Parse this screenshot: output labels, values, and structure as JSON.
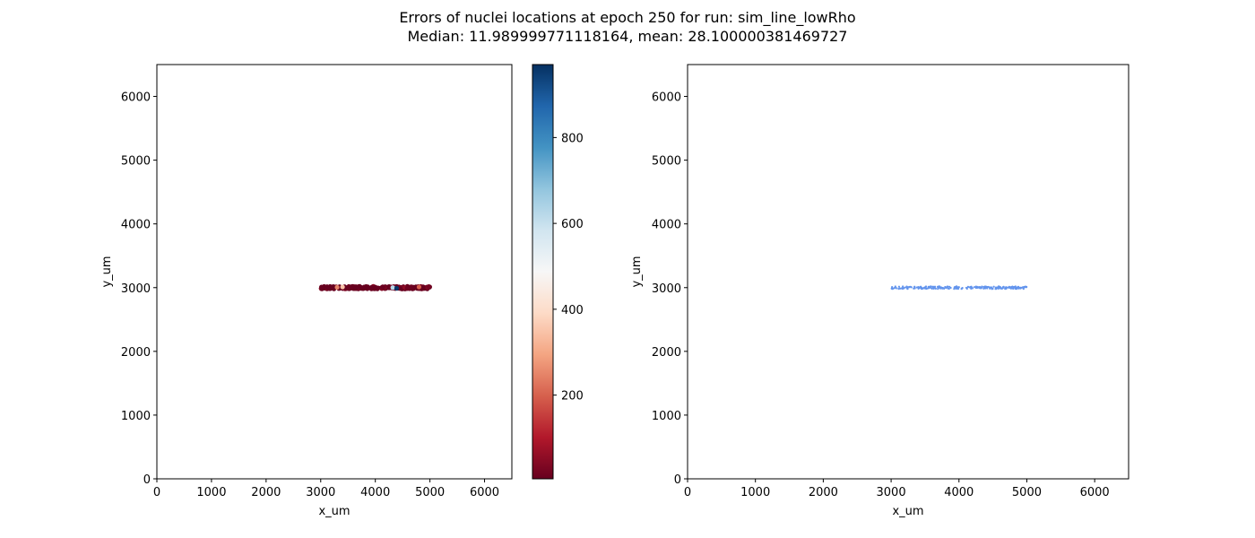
{
  "figure": {
    "title_line1": "Errors of nuclei locations at epoch 250 for run: sim_line_lowRho",
    "title_line2": "Median: 11.989999771118164, mean: 28.100000381469727"
  },
  "chart_data": [
    {
      "type": "scatter",
      "title": "",
      "xlabel": "x_um",
      "ylabel": "y_um",
      "xlim": [
        0,
        6500
      ],
      "ylim": [
        0,
        6500
      ],
      "xticks": [
        0,
        1000,
        2000,
        3000,
        4000,
        5000,
        6000
      ],
      "yticks": [
        0,
        1000,
        2000,
        3000,
        4000,
        5000,
        6000
      ],
      "grid": false,
      "colorbar": {
        "colormap": "RdBu",
        "range": [
          5,
          970
        ],
        "ticks": [
          200,
          400,
          600,
          800
        ]
      },
      "points": {
        "x_range": [
          3000,
          5000
        ],
        "y_center": 3000,
        "y_spread": 20,
        "color_value_mostly": "low (< 50)",
        "notable": [
          {
            "x": 3400,
            "y": 3010,
            "error": 350
          },
          {
            "x": 3300,
            "y": 3005,
            "error": 250
          },
          {
            "x": 4320,
            "y": 3000,
            "error": 620
          },
          {
            "x": 4390,
            "y": 2990,
            "error": 960
          },
          {
            "x": 4800,
            "y": 3010,
            "error": 200
          }
        ]
      }
    },
    {
      "type": "scatter",
      "title": "",
      "xlabel": "x_um",
      "ylabel": "y_um",
      "xlim": [
        0,
        6500
      ],
      "ylim": [
        0,
        6500
      ],
      "xticks": [
        0,
        1000,
        2000,
        3000,
        4000,
        5000,
        6000
      ],
      "yticks": [
        0,
        1000,
        2000,
        3000,
        4000,
        5000,
        6000
      ],
      "grid": false,
      "marker_color": "#6495ED",
      "points": {
        "x_range": [
          3000,
          5000
        ],
        "y_center": 3000,
        "y_spread": 20
      }
    }
  ]
}
